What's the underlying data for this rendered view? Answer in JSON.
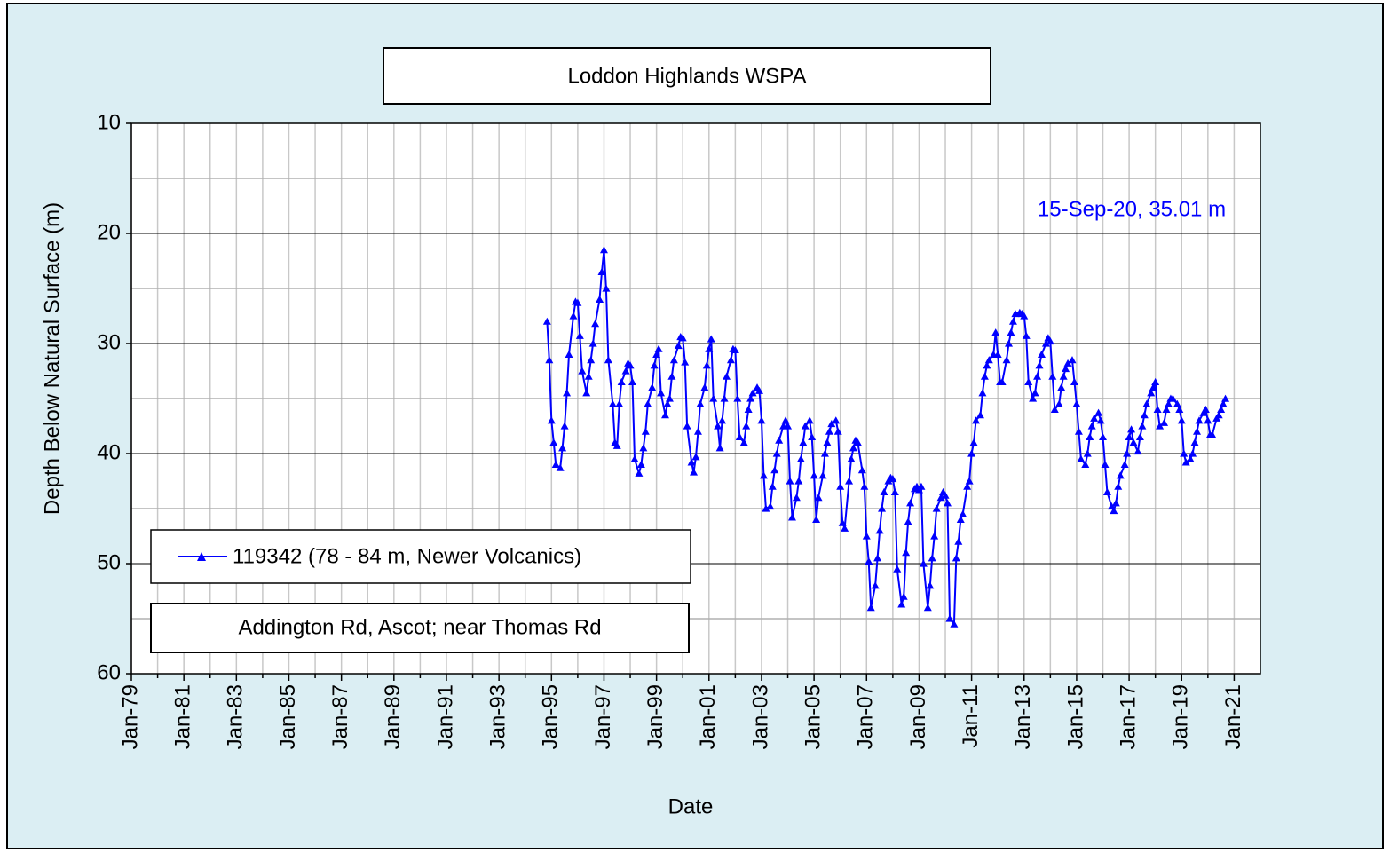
{
  "chart_data": {
    "type": "line",
    "title": "Loddon Highlands WSPA",
    "subtitle": "Addington  Rd, Ascot; near Thomas Rd",
    "x_label": "Date",
    "y_label": "Depth Below Natural Surface (m)",
    "annotation": "15-Sep-20, 35.01 m",
    "ylim": [
      10,
      60
    ],
    "y_inverted": true,
    "yticks": [
      10,
      20,
      30,
      40,
      50,
      60
    ],
    "y_minor_ticks": [
      15,
      25,
      35,
      45,
      55
    ],
    "xlim": [
      "1979-01",
      "2022-01"
    ],
    "xticks": [
      {
        "value": "1979-01",
        "label": "Jan-79"
      },
      {
        "value": "1981-01",
        "label": "Jan-81"
      },
      {
        "value": "1983-01",
        "label": "Jan-83"
      },
      {
        "value": "1985-01",
        "label": "Jan-85"
      },
      {
        "value": "1987-01",
        "label": "Jan-87"
      },
      {
        "value": "1989-01",
        "label": "Jan-89"
      },
      {
        "value": "1991-01",
        "label": "Jan-91"
      },
      {
        "value": "1993-01",
        "label": "Jan-93"
      },
      {
        "value": "1995-01",
        "label": "Jan-95"
      },
      {
        "value": "1997-01",
        "label": "Jan-97"
      },
      {
        "value": "1999-01",
        "label": "Jan-99"
      },
      {
        "value": "2001-01",
        "label": "Jan-01"
      },
      {
        "value": "2003-01",
        "label": "Jan-03"
      },
      {
        "value": "2005-01",
        "label": "Jan-05"
      },
      {
        "value": "2007-01",
        "label": "Jan-07"
      },
      {
        "value": "2009-01",
        "label": "Jan-09"
      },
      {
        "value": "2011-01",
        "label": "Jan-11"
      },
      {
        "value": "2013-01",
        "label": "Jan-13"
      },
      {
        "value": "2015-01",
        "label": "Jan-15"
      },
      {
        "value": "2017-01",
        "label": "Jan-17"
      },
      {
        "value": "2019-01",
        "label": "Jan-19"
      },
      {
        "value": "2021-01",
        "label": "Jan-21"
      }
    ],
    "x_minor_ticks": [
      "1980-01",
      "1982-01",
      "1984-01",
      "1986-01",
      "1988-01",
      "1990-01",
      "1992-01",
      "1994-01",
      "1996-01",
      "1998-01",
      "2000-01",
      "2002-01",
      "2004-01",
      "2006-01",
      "2008-01",
      "2010-01",
      "2012-01",
      "2014-01",
      "2016-01",
      "2018-01",
      "2020-01"
    ],
    "grid": true,
    "x": [
      "1994-11",
      "1994-12",
      "1995-01",
      "1995-02",
      "1995-03",
      "1995-05",
      "1995-06",
      "1995-07",
      "1995-08",
      "1995-09",
      "1995-11",
      "1995-12",
      "1996-01",
      "1996-02",
      "1996-03",
      "1996-05",
      "1996-06",
      "1996-07",
      "1996-08",
      "1996-09",
      "1996-11",
      "1996-12",
      "1997-01",
      "1997-02",
      "1997-03",
      "1997-05",
      "1997-06",
      "1997-07",
      "1997-08",
      "1997-09",
      "1997-11",
      "1997-12",
      "1998-01",
      "1998-02",
      "1998-03",
      "1998-05",
      "1998-06",
      "1998-07",
      "1998-08",
      "1998-09",
      "1998-11",
      "1998-12",
      "1999-01",
      "1999-02",
      "1999-03",
      "1999-05",
      "1999-06",
      "1999-07",
      "1999-08",
      "1999-09",
      "1999-11",
      "1999-12",
      "2000-01",
      "2000-02",
      "2000-03",
      "2000-05",
      "2000-06",
      "2000-07",
      "2000-08",
      "2000-09",
      "2000-11",
      "2000-12",
      "2001-01",
      "2001-02",
      "2001-03",
      "2001-05",
      "2001-06",
      "2001-07",
      "2001-08",
      "2001-09",
      "2001-11",
      "2001-12",
      "2002-01",
      "2002-02",
      "2002-03",
      "2002-05",
      "2002-06",
      "2002-07",
      "2002-08",
      "2002-09",
      "2002-11",
      "2002-12",
      "2003-01",
      "2003-02",
      "2003-03",
      "2003-05",
      "2003-06",
      "2003-07",
      "2003-08",
      "2003-09",
      "2003-11",
      "2003-12",
      "2004-01",
      "2004-02",
      "2004-03",
      "2004-05",
      "2004-06",
      "2004-07",
      "2004-08",
      "2004-09",
      "2004-11",
      "2004-12",
      "2005-01",
      "2005-02",
      "2005-03",
      "2005-05",
      "2005-06",
      "2005-07",
      "2005-08",
      "2005-09",
      "2005-11",
      "2005-12",
      "2006-01",
      "2006-02",
      "2006-03",
      "2006-05",
      "2006-06",
      "2006-07",
      "2006-08",
      "2006-09",
      "2006-11",
      "2006-12",
      "2007-01",
      "2007-02",
      "2007-03",
      "2007-05",
      "2007-06",
      "2007-07",
      "2007-08",
      "2007-09",
      "2007-11",
      "2007-12",
      "2008-01",
      "2008-02",
      "2008-03",
      "2008-05",
      "2008-06",
      "2008-07",
      "2008-08",
      "2008-09",
      "2008-11",
      "2008-12",
      "2009-01",
      "2009-02",
      "2009-03",
      "2009-05",
      "2009-06",
      "2009-07",
      "2009-08",
      "2009-09",
      "2009-11",
      "2009-12",
      "2010-01",
      "2010-02",
      "2010-03",
      "2010-05",
      "2010-06",
      "2010-07",
      "2010-08",
      "2010-09",
      "2010-11",
      "2010-12",
      "2011-01",
      "2011-02",
      "2011-03",
      "2011-05",
      "2011-06",
      "2011-07",
      "2011-08",
      "2011-09",
      "2011-11",
      "2011-12",
      "2012-01",
      "2012-02",
      "2012-03",
      "2012-05",
      "2012-06",
      "2012-07",
      "2012-08",
      "2012-09",
      "2012-11",
      "2012-12",
      "2013-01",
      "2013-02",
      "2013-03",
      "2013-05",
      "2013-06",
      "2013-07",
      "2013-08",
      "2013-09",
      "2013-11",
      "2013-12",
      "2014-01",
      "2014-02",
      "2014-03",
      "2014-05",
      "2014-06",
      "2014-07",
      "2014-08",
      "2014-09",
      "2014-11",
      "2014-12",
      "2015-01",
      "2015-02",
      "2015-03",
      "2015-05",
      "2015-06",
      "2015-07",
      "2015-08",
      "2015-09",
      "2015-11",
      "2015-12",
      "2016-01",
      "2016-02",
      "2016-03",
      "2016-05",
      "2016-06",
      "2016-07",
      "2016-08",
      "2016-09",
      "2016-11",
      "2016-12",
      "2017-01",
      "2017-02",
      "2017-03",
      "2017-05",
      "2017-06",
      "2017-07",
      "2017-08",
      "2017-09",
      "2017-11",
      "2017-12",
      "2018-01",
      "2018-02",
      "2018-03",
      "2018-05",
      "2018-06",
      "2018-07",
      "2018-08",
      "2018-09",
      "2018-11",
      "2018-12",
      "2019-01",
      "2019-02",
      "2019-03",
      "2019-05",
      "2019-06",
      "2019-07",
      "2019-08",
      "2019-09",
      "2019-11",
      "2019-12",
      "2020-01",
      "2020-02",
      "2020-03",
      "2020-05",
      "2020-06",
      "2020-07",
      "2020-08",
      "2020-09"
    ],
    "series": [
      {
        "name": "119342 (78 - 84 m, Newer Volcanics)",
        "color": "#0000ff",
        "values": [
          28,
          31.5,
          37,
          39,
          41,
          41.3,
          39.5,
          37.5,
          34.5,
          31,
          27.5,
          26.2,
          26.3,
          29.3,
          32.5,
          34.5,
          33,
          31.5,
          30,
          28.2,
          26,
          23.5,
          21.5,
          25,
          31.5,
          35.5,
          39,
          39.3,
          35.5,
          33.5,
          32.5,
          31.8,
          32,
          33.5,
          40.5,
          41.8,
          41,
          39.5,
          38,
          35.5,
          34,
          32,
          31,
          30.5,
          34.5,
          36.5,
          35.5,
          35,
          33,
          31.5,
          30.2,
          29.4,
          29.5,
          31.7,
          37.5,
          40.8,
          41.7,
          40.3,
          38,
          35.5,
          34,
          32,
          30.5,
          29.6,
          35,
          37.5,
          39.5,
          37,
          35,
          33,
          31.5,
          30.5,
          30.6,
          35,
          38.5,
          39,
          37.5,
          36,
          35,
          34.5,
          34,
          34.3,
          37,
          42,
          45,
          44.8,
          43,
          41.5,
          40,
          38.8,
          37.5,
          37,
          37.5,
          42.5,
          45.8,
          44,
          42.5,
          40.5,
          39,
          37.5,
          37,
          38.5,
          42,
          46,
          44,
          42,
          40,
          39,
          38,
          37.3,
          37,
          38,
          43,
          46.3,
          46.8,
          42.5,
          40.5,
          39.5,
          38.8,
          39,
          41.5,
          43,
          47.5,
          49.8,
          54,
          52,
          49.5,
          47,
          45,
          43.5,
          42.5,
          42.2,
          42.3,
          43.5,
          50.5,
          53.7,
          53,
          49,
          46.2,
          44.5,
          43.2,
          43,
          43.3,
          43,
          50,
          54,
          52,
          49.5,
          47.5,
          45,
          44,
          43.5,
          43.8,
          44.5,
          55,
          55.5,
          49.5,
          48,
          46,
          45.5,
          43,
          42.5,
          40,
          39,
          37,
          36.5,
          34.5,
          33,
          32,
          31.5,
          31,
          29,
          31,
          33.5,
          33.5,
          31.5,
          30,
          29,
          28,
          27.3,
          27.2,
          27.3,
          27.5,
          29.3,
          33.5,
          35,
          34.5,
          33,
          32,
          31,
          30,
          29.5,
          29.8,
          33,
          36,
          35.5,
          34,
          33,
          32.3,
          31.8,
          31.5,
          33.5,
          35.5,
          38,
          40.5,
          41,
          40,
          38.5,
          37.5,
          36.8,
          36.3,
          37,
          38.5,
          41,
          43.5,
          44.8,
          45.2,
          44.5,
          43,
          42,
          41,
          40,
          38.5,
          37.8,
          39,
          39.8,
          38.5,
          37.5,
          36.5,
          35.5,
          34.5,
          34,
          33.5,
          36,
          37.5,
          37.2,
          36,
          35.5,
          35,
          35,
          35.5,
          36,
          37,
          40,
          40.8,
          40.5,
          40,
          39,
          38,
          37,
          36.3,
          36,
          37,
          38.3,
          38.3,
          36.8,
          36.5,
          36,
          35.5,
          35.01
        ]
      }
    ]
  }
}
